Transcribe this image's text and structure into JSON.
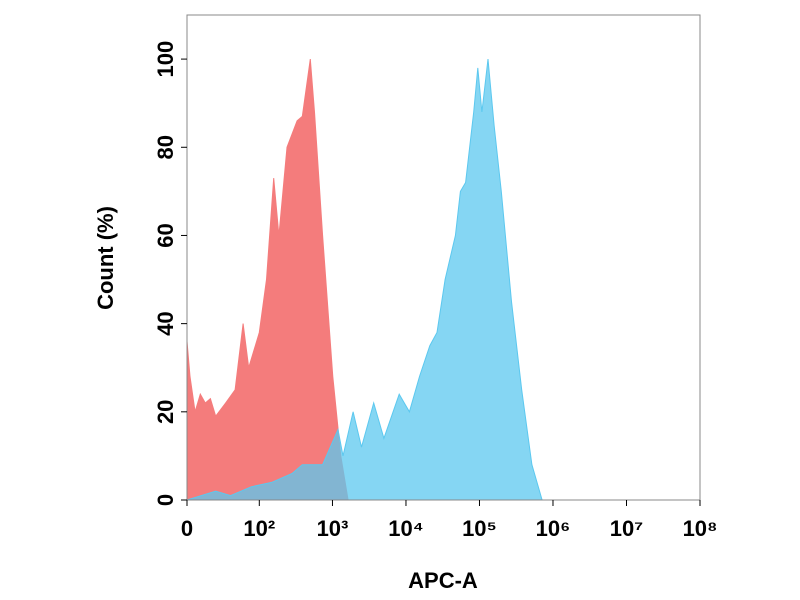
{
  "chart_data": {
    "type": "area",
    "xlabel": "APC-A",
    "ylabel": "Count  (%)",
    "xscale": "biexponential",
    "xlim": [
      0,
      100000000
    ],
    "ylim": [
      0,
      110
    ],
    "xticks": [
      0,
      {
        "value": 100,
        "label": "10²"
      },
      {
        "value": 1000,
        "label": "10³"
      },
      {
        "value": 10000,
        "label": "10⁴"
      },
      {
        "value": 100000,
        "label": "10⁵"
      },
      {
        "value": 1000000,
        "label": "10⁶"
      },
      {
        "value": 10000000,
        "label": "10⁷"
      },
      {
        "value": 100000000,
        "label": "10⁸"
      }
    ],
    "yticks": [
      0,
      20,
      40,
      60,
      80,
      100
    ],
    "series": [
      {
        "color": "#f47c7c",
        "x": [
          0,
          2,
          5.4,
          9,
          12.7,
          16.8,
          21.5,
          32,
          45,
          59,
          71,
          100,
          126,
          158,
          186,
          240,
          330,
          388,
          500,
          570,
          735,
          1010,
          1300,
          1630
        ],
        "values": [
          36,
          28,
          20,
          24,
          22,
          23,
          19,
          22,
          25,
          40,
          30,
          38,
          50,
          73,
          60,
          80,
          86,
          87,
          100,
          88,
          60,
          28,
          10,
          0
        ]
      },
      {
        "color": "#5cc8ef",
        "x": [
          0,
          21.5,
          38.5,
          77,
          148,
          282,
          388,
          735,
          1190,
          1390,
          1910,
          2480,
          3640,
          5010,
          8090,
          11140,
          15300,
          21100,
          26400,
          34100,
          47000,
          55100,
          64700,
          83500,
          94800,
          107800,
          130600,
          158200,
          197800,
          272500,
          375000,
          516500,
          711000
        ],
        "values": [
          0,
          2,
          1,
          3,
          4,
          6,
          8,
          8,
          16,
          10,
          20,
          12,
          22,
          14,
          24,
          20,
          28,
          35,
          38,
          50,
          60,
          70,
          72,
          88,
          98,
          88,
          100,
          85,
          70,
          45,
          25,
          8,
          0
        ]
      }
    ]
  }
}
